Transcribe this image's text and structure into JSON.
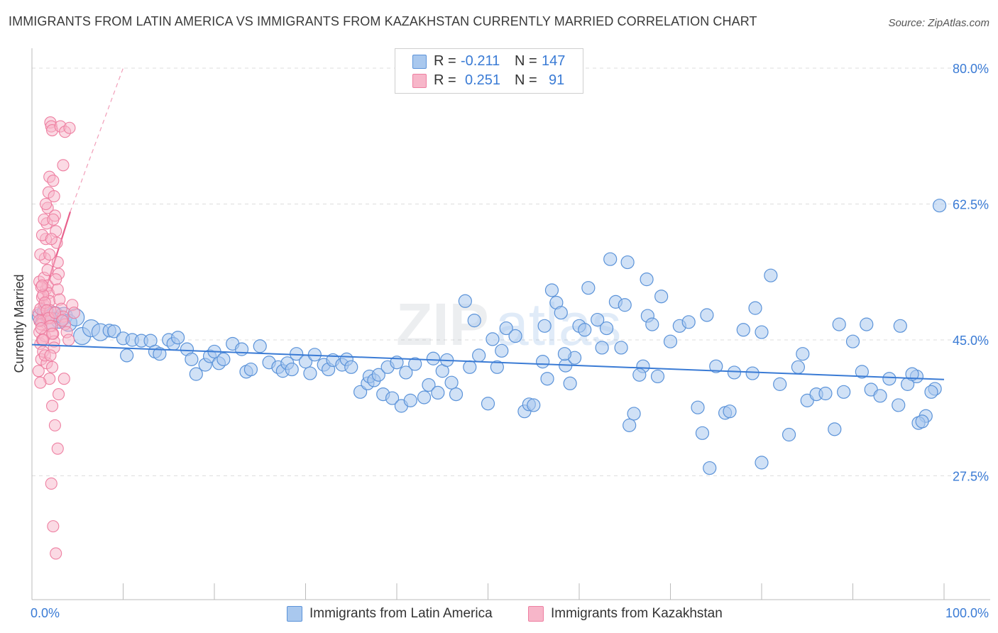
{
  "header": {
    "title": "IMMIGRANTS FROM LATIN AMERICA VS IMMIGRANTS FROM KAZAKHSTAN CURRENTLY MARRIED CORRELATION CHART",
    "source": "Source: ZipAtlas.com"
  },
  "watermark": {
    "zip": "ZIP",
    "atlas": "atlas"
  },
  "legend": {
    "rows": [
      {
        "r_label": "R =",
        "r_value": "-0.211",
        "n_label": "N =",
        "n_value": "147"
      },
      {
        "r_label": "R =",
        "r_value": "0.251",
        "n_label": "N =",
        "n_value": "91"
      }
    ]
  },
  "bottom_legend": {
    "items": [
      {
        "label": "Immigrants from Latin America"
      },
      {
        "label": "Immigrants from Kazakhstan"
      }
    ]
  },
  "colors": {
    "blue_fill": "#a9c8ee",
    "blue_stroke": "#5b93d9",
    "blue_line": "#3a7bd5",
    "pink_fill": "#f7b6c9",
    "pink_stroke": "#ee7fa1",
    "pink_line": "#e8608c",
    "axis_text": "#3a7bd5",
    "grid": "#dddddd"
  },
  "chart_data": {
    "type": "scatter",
    "title": "IMMIGRANTS FROM LATIN AMERICA VS IMMIGRANTS FROM KAZAKHSTAN CURRENTLY MARRIED CORRELATION CHART",
    "xlabel": "",
    "ylabel": "Currently Married",
    "xlim": [
      0,
      100
    ],
    "ylim": [
      10,
      82
    ],
    "x_tick_labels": [
      "0.0%",
      "100.0%"
    ],
    "y_ticks": [
      27.5,
      45.0,
      62.5,
      80.0
    ],
    "y_tick_labels": [
      "27.5%",
      "45.0%",
      "62.5%",
      "80.0%"
    ],
    "grid": true,
    "legend_position": "top-center",
    "series": [
      {
        "name": "Immigrants from Latin America",
        "r": -0.211,
        "n": 147,
        "trend": {
          "x": [
            0,
            100
          ],
          "y": [
            44.4,
            39.9
          ]
        },
        "points": [
          [
            1.0,
            48.0
          ],
          [
            1.5,
            48.5
          ],
          [
            2.0,
            47.5
          ],
          [
            2.5,
            48.2
          ],
          [
            3.0,
            47.6
          ],
          [
            3.5,
            48.1
          ],
          [
            4.0,
            47.2
          ],
          [
            4.8,
            47.9
          ],
          [
            5.5,
            45.5
          ],
          [
            6.5,
            46.5
          ],
          [
            7.5,
            46.0
          ],
          [
            8.5,
            46.2
          ],
          [
            9.0,
            46.1
          ],
          [
            10.0,
            45.2
          ],
          [
            10.4,
            43.0
          ],
          [
            11.0,
            45.0
          ],
          [
            12.0,
            44.9
          ],
          [
            13.0,
            44.9
          ],
          [
            13.5,
            43.5
          ],
          [
            14.0,
            43.2
          ],
          [
            15.0,
            45.0
          ],
          [
            15.5,
            44.5
          ],
          [
            16.0,
            45.3
          ],
          [
            17.0,
            43.8
          ],
          [
            17.5,
            42.5
          ],
          [
            18.0,
            40.6
          ],
          [
            19.0,
            41.8
          ],
          [
            19.5,
            42.9
          ],
          [
            20.0,
            43.5
          ],
          [
            20.5,
            42.0
          ],
          [
            21.0,
            42.5
          ],
          [
            22.0,
            44.5
          ],
          [
            23.0,
            43.8
          ],
          [
            23.5,
            40.9
          ],
          [
            24.0,
            41.2
          ],
          [
            25.0,
            44.2
          ],
          [
            26.0,
            42.1
          ],
          [
            27.0,
            41.5
          ],
          [
            27.5,
            41.0
          ],
          [
            28.0,
            42.0
          ],
          [
            28.5,
            41.2
          ],
          [
            29.0,
            43.2
          ],
          [
            30.0,
            42.2
          ],
          [
            30.5,
            40.7
          ],
          [
            31.0,
            43.1
          ],
          [
            32.0,
            41.8
          ],
          [
            32.5,
            41.2
          ],
          [
            33.0,
            42.4
          ],
          [
            34.0,
            41.8
          ],
          [
            34.5,
            42.5
          ],
          [
            35.0,
            41.5
          ],
          [
            36.0,
            38.3
          ],
          [
            36.8,
            39.4
          ],
          [
            37.0,
            40.3
          ],
          [
            37.5,
            39.8
          ],
          [
            38.0,
            40.5
          ],
          [
            38.5,
            38.0
          ],
          [
            39.0,
            41.5
          ],
          [
            39.5,
            37.5
          ],
          [
            40.0,
            42.1
          ],
          [
            40.5,
            36.5
          ],
          [
            41.0,
            40.8
          ],
          [
            41.5,
            37.2
          ],
          [
            42.0,
            41.9
          ],
          [
            43.0,
            37.6
          ],
          [
            43.5,
            39.2
          ],
          [
            44.0,
            42.6
          ],
          [
            44.5,
            38.2
          ],
          [
            45.0,
            41.0
          ],
          [
            45.5,
            42.4
          ],
          [
            46.0,
            39.5
          ],
          [
            46.5,
            38.0
          ],
          [
            47.5,
            50.0
          ],
          [
            48.0,
            41.5
          ],
          [
            48.5,
            47.5
          ],
          [
            49.0,
            43.0
          ],
          [
            50.0,
            36.8
          ],
          [
            50.5,
            45.1
          ],
          [
            51.0,
            41.5
          ],
          [
            51.5,
            43.6
          ],
          [
            52.0,
            46.5
          ],
          [
            53.0,
            45.5
          ],
          [
            54.0,
            35.8
          ],
          [
            54.5,
            36.7
          ],
          [
            55.0,
            36.6
          ],
          [
            56.0,
            42.2
          ],
          [
            56.5,
            40.0
          ],
          [
            57.0,
            51.4
          ],
          [
            57.5,
            49.8
          ],
          [
            58.0,
            48.5
          ],
          [
            58.5,
            41.7
          ],
          [
            59.0,
            39.4
          ],
          [
            59.5,
            42.7
          ],
          [
            60.0,
            46.8
          ],
          [
            61.0,
            51.7
          ],
          [
            62.0,
            47.6
          ],
          [
            63.0,
            46.5
          ],
          [
            64.0,
            49.9
          ],
          [
            65.0,
            49.5
          ],
          [
            65.5,
            34.0
          ],
          [
            66.0,
            35.5
          ],
          [
            67.0,
            41.6
          ],
          [
            67.5,
            48.1
          ],
          [
            68.0,
            47.0
          ],
          [
            69.0,
            50.6
          ],
          [
            70.0,
            44.8
          ],
          [
            71.0,
            46.8
          ],
          [
            72.0,
            47.3
          ],
          [
            73.0,
            36.3
          ],
          [
            74.0,
            48.2
          ],
          [
            75.0,
            41.6
          ],
          [
            76.0,
            35.6
          ],
          [
            77.0,
            40.8
          ],
          [
            78.0,
            46.3
          ],
          [
            79.0,
            40.7
          ],
          [
            80.0,
            46.0
          ],
          [
            81.0,
            53.3
          ],
          [
            82.0,
            39.3
          ],
          [
            83.0,
            32.8
          ],
          [
            84.0,
            41.5
          ],
          [
            85.0,
            37.2
          ],
          [
            86.0,
            38.0
          ],
          [
            87.0,
            38.1
          ],
          [
            88.0,
            33.5
          ],
          [
            89.0,
            38.3
          ],
          [
            90.0,
            44.8
          ],
          [
            91.0,
            40.9
          ],
          [
            92.0,
            38.6
          ],
          [
            93.0,
            37.8
          ],
          [
            94.0,
            40.0
          ],
          [
            95.0,
            36.6
          ],
          [
            96.0,
            39.3
          ],
          [
            97.0,
            40.3
          ],
          [
            98.0,
            35.2
          ],
          [
            99.0,
            38.7
          ],
          [
            99.5,
            62.3
          ],
          [
            76.5,
            35.8
          ],
          [
            73.5,
            33.0
          ],
          [
            74.3,
            28.5
          ],
          [
            80.0,
            29.2
          ],
          [
            84.5,
            43.2
          ],
          [
            88.5,
            47.0
          ],
          [
            91.5,
            47.0
          ],
          [
            95.2,
            46.8
          ],
          [
            97.2,
            34.3
          ],
          [
            97.6,
            34.5
          ],
          [
            96.5,
            40.6
          ],
          [
            98.6,
            38.3
          ],
          [
            62.5,
            44.0
          ],
          [
            64.6,
            44.0
          ],
          [
            66.6,
            40.5
          ],
          [
            68.6,
            40.3
          ],
          [
            56.2,
            46.8
          ],
          [
            58.4,
            43.2
          ],
          [
            60.6,
            46.3
          ],
          [
            63.4,
            55.4
          ],
          [
            65.3,
            55.0
          ],
          [
            79.3,
            49.1
          ],
          [
            67.4,
            52.8
          ]
        ]
      },
      {
        "name": "Immigrants from Kazakhstan",
        "r": 0.251,
        "n": 91,
        "trend": {
          "x": [
            0.3,
            4.2
          ],
          "y": [
            47.0,
            61.5
          ],
          "extended_to": [
            10.0,
            80.0
          ]
        },
        "points": [
          [
            0.1,
            48.5
          ],
          [
            0.2,
            46.0
          ],
          [
            0.3,
            44.5
          ],
          [
            0.4,
            42.5
          ],
          [
            0.5,
            50.5
          ],
          [
            0.6,
            47.5
          ],
          [
            0.7,
            49.5
          ],
          [
            0.8,
            45.5
          ],
          [
            0.9,
            51.5
          ],
          [
            1.0,
            48.0
          ],
          [
            0.2,
            52.5
          ],
          [
            0.3,
            49.0
          ],
          [
            0.4,
            47.0
          ],
          [
            0.5,
            45.0
          ],
          [
            0.6,
            43.5
          ],
          [
            0.7,
            53.0
          ],
          [
            0.8,
            55.5
          ],
          [
            0.9,
            58.0
          ],
          [
            1.0,
            60.0
          ],
          [
            1.1,
            62.0
          ],
          [
            1.2,
            64.0
          ],
          [
            1.3,
            66.0
          ],
          [
            1.4,
            73.0
          ],
          [
            1.5,
            72.5
          ],
          [
            1.6,
            72.0
          ],
          [
            1.7,
            65.5
          ],
          [
            1.8,
            63.5
          ],
          [
            1.9,
            61.0
          ],
          [
            2.0,
            59.0
          ],
          [
            2.1,
            57.5
          ],
          [
            2.2,
            55.0
          ],
          [
            2.3,
            53.5
          ],
          [
            1.1,
            52.0
          ],
          [
            1.2,
            51.0
          ],
          [
            1.3,
            50.0
          ],
          [
            1.4,
            48.8
          ],
          [
            1.5,
            47.8
          ],
          [
            1.6,
            46.8
          ],
          [
            1.7,
            45.8
          ],
          [
            1.8,
            44.8
          ],
          [
            0.4,
            51.8
          ],
          [
            0.6,
            50.8
          ],
          [
            0.8,
            49.8
          ],
          [
            1.0,
            48.8
          ],
          [
            1.2,
            47.8
          ],
          [
            1.4,
            46.8
          ],
          [
            1.6,
            45.8
          ],
          [
            1.8,
            44.0
          ],
          [
            2.0,
            52.8
          ],
          [
            2.2,
            51.5
          ],
          [
            2.4,
            50.2
          ],
          [
            2.6,
            49.0
          ],
          [
            2.8,
            48.0
          ],
          [
            3.0,
            47.0
          ],
          [
            3.2,
            46.0
          ],
          [
            3.4,
            45.0
          ],
          [
            1.0,
            42.0
          ],
          [
            1.3,
            40.0
          ],
          [
            1.6,
            36.5
          ],
          [
            1.9,
            34.0
          ],
          [
            2.2,
            31.0
          ],
          [
            1.5,
            26.5
          ],
          [
            1.7,
            21.0
          ],
          [
            2.0,
            17.5
          ],
          [
            0.3,
            56.0
          ],
          [
            0.5,
            58.5
          ],
          [
            0.7,
            60.5
          ],
          [
            0.9,
            62.5
          ],
          [
            2.5,
            72.5
          ],
          [
            3.0,
            71.8
          ],
          [
            3.5,
            72.3
          ],
          [
            2.8,
            67.5
          ],
          [
            1.1,
            54.0
          ],
          [
            1.3,
            56.0
          ],
          [
            1.5,
            58.0
          ],
          [
            1.7,
            60.5
          ],
          [
            0.2,
            47.5
          ],
          [
            0.4,
            46.5
          ],
          [
            0.6,
            45.0
          ],
          [
            0.8,
            43.0
          ],
          [
            2.9,
            40.0
          ],
          [
            2.3,
            38.0
          ],
          [
            1.4,
            43.0
          ],
          [
            1.6,
            41.5
          ],
          [
            3.8,
            49.5
          ],
          [
            4.0,
            48.5
          ],
          [
            1.9,
            48.5
          ],
          [
            2.7,
            47.5
          ],
          [
            0.1,
            41.0
          ],
          [
            0.3,
            39.5
          ],
          [
            0.5,
            52.0
          ]
        ]
      }
    ]
  }
}
